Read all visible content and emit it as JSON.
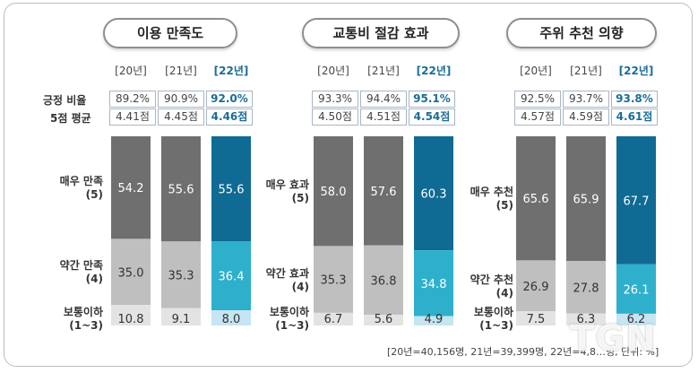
{
  "years": [
    "[20년]",
    "[21년]",
    "[22년]"
  ],
  "chart_data": [
    {
      "type": "bar",
      "title": "이용 만족도",
      "categories": [
        "[20년]",
        "[21년]",
        "[22년]"
      ],
      "row_labels": [
        "긍정 비율",
        "5점 평균"
      ],
      "positive": [
        "89.2%",
        "90.9%",
        "92.0%"
      ],
      "average": [
        "4.41점",
        "4.45점",
        "4.46점"
      ],
      "segment_labels": [
        [
          "매우 만족",
          "(5)"
        ],
        [
          "약간 만족",
          "(4)"
        ],
        [
          "보통이하",
          "(1~3)"
        ]
      ],
      "series": [
        {
          "name": "매우 만족(5)",
          "values": [
            54.2,
            55.6,
            55.6
          ]
        },
        {
          "name": "약간 만족(4)",
          "values": [
            35.0,
            35.3,
            36.4
          ]
        },
        {
          "name": "보통이하(1~3)",
          "values": [
            10.8,
            9.1,
            8.0
          ]
        }
      ]
    },
    {
      "type": "bar",
      "title": "교통비 절감 효과",
      "categories": [
        "[20년]",
        "[21년]",
        "[22년]"
      ],
      "row_labels": [
        "",
        ""
      ],
      "positive": [
        "93.3%",
        "94.4%",
        "95.1%"
      ],
      "average": [
        "4.50점",
        "4.51점",
        "4.54점"
      ],
      "segment_labels": [
        [
          "매우 효과",
          "(5)"
        ],
        [
          "약간 효과",
          "(4)"
        ],
        [
          "보통이하",
          "(1~3)"
        ]
      ],
      "series": [
        {
          "name": "매우 효과(5)",
          "values": [
            58.0,
            57.6,
            60.3
          ]
        },
        {
          "name": "약간 효과(4)",
          "values": [
            35.3,
            36.8,
            34.8
          ]
        },
        {
          "name": "보통이하(1~3)",
          "values": [
            6.7,
            5.6,
            4.9
          ]
        }
      ]
    },
    {
      "type": "bar",
      "title": "주위 추천 의향",
      "categories": [
        "[20년]",
        "[21년]",
        "[22년]"
      ],
      "row_labels": [
        "",
        ""
      ],
      "positive": [
        "92.5%",
        "93.7%",
        "93.8%"
      ],
      "average": [
        "4.57점",
        "4.59점",
        "4.61점"
      ],
      "segment_labels": [
        [
          "매우 추천",
          "(5)"
        ],
        [
          "약간 추천",
          "(4)"
        ],
        [
          "보통이하",
          "(1~3)"
        ]
      ],
      "series": [
        {
          "name": "매우 추천(5)",
          "values": [
            65.6,
            65.9,
            67.7
          ]
        },
        {
          "name": "약간 추천(4)",
          "values": [
            26.9,
            27.8,
            26.1
          ]
        },
        {
          "name": "보통이하(1~3)",
          "values": [
            7.5,
            6.3,
            6.2
          ]
        }
      ]
    }
  ],
  "colors": {
    "past_top": "#6f6f6f",
    "past_mid": "#bfbfbf",
    "past_low": "#e3e3e3",
    "cur_top": "#0f6a94",
    "cur_mid": "#2eb0cc",
    "cur_low": "#c6e4f2",
    "highlight_text": "#1a6c97"
  },
  "footnote": "[20년=40,156명, 21년=39,399명, 22년=4,8…명, 단위: %]",
  "watermark": "TGN"
}
